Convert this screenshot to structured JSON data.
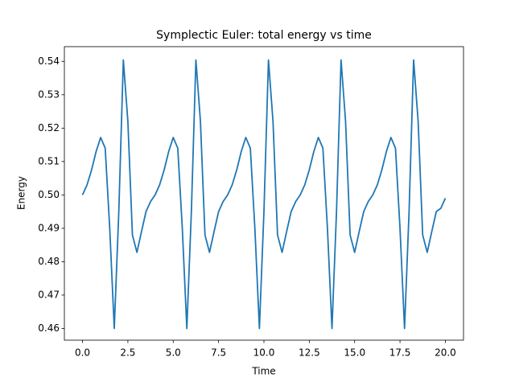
{
  "chart_data": {
    "type": "line",
    "title": "Symplectic Euler: total energy vs time",
    "x_label": "Time",
    "y_label": "Energy",
    "x": [
      0,
      0.25,
      0.5,
      0.75,
      1,
      1.25,
      1.5,
      1.75,
      2,
      2.25,
      2.5,
      2.75,
      3,
      3.25,
      3.5,
      3.75,
      4,
      4.25,
      4.5,
      4.75,
      5,
      5.25,
      5.5,
      5.75,
      6,
      6.25,
      6.5,
      6.75,
      7,
      7.25,
      7.5,
      7.75,
      8,
      8.25,
      8.5,
      8.75,
      9,
      9.25,
      9.5,
      9.75,
      10,
      10.25,
      10.5,
      10.75,
      11,
      11.25,
      11.5,
      11.75,
      12,
      12.25,
      12.5,
      12.75,
      13,
      13.25,
      13.5,
      13.75,
      14,
      14.25,
      14.5,
      14.75,
      15,
      15.25,
      15.5,
      15.75,
      16,
      16.25,
      16.5,
      16.75,
      17,
      17.25,
      17.5,
      17.75,
      18,
      18.25,
      18.5,
      18.75,
      19,
      19.25,
      19.5,
      19.75,
      20
    ],
    "values": [
      0.5,
      0.503,
      0.5075,
      0.513,
      0.5172,
      0.514,
      0.49,
      0.46,
      0.495,
      0.5404,
      0.522,
      0.488,
      0.4828,
      0.489,
      0.495,
      0.498,
      0.5,
      0.503,
      0.5075,
      0.513,
      0.5172,
      0.514,
      0.49,
      0.46,
      0.495,
      0.5404,
      0.522,
      0.488,
      0.4828,
      0.489,
      0.495,
      0.498,
      0.5,
      0.503,
      0.5075,
      0.513,
      0.5172,
      0.514,
      0.49,
      0.46,
      0.495,
      0.5404,
      0.522,
      0.488,
      0.4828,
      0.489,
      0.495,
      0.498,
      0.5,
      0.503,
      0.5075,
      0.513,
      0.5172,
      0.514,
      0.49,
      0.46,
      0.495,
      0.5404,
      0.522,
      0.488,
      0.4828,
      0.489,
      0.495,
      0.498,
      0.5,
      0.503,
      0.5075,
      0.513,
      0.5172,
      0.514,
      0.49,
      0.46,
      0.495,
      0.5404,
      0.522,
      0.488,
      0.4828,
      0.489,
      0.495,
      0.496,
      0.499
    ],
    "color": "#1f77b4",
    "xlim": [
      -1,
      21
    ],
    "ylim": [
      0.4565,
      0.5444
    ],
    "xticks": [
      {
        "value": 0,
        "label": "0.0"
      },
      {
        "value": 2.5,
        "label": "2.5"
      },
      {
        "value": 5,
        "label": "5.0"
      },
      {
        "value": 7.5,
        "label": "7.5"
      },
      {
        "value": 10,
        "label": "10.0"
      },
      {
        "value": 12.5,
        "label": "12.5"
      },
      {
        "value": 15,
        "label": "15.0"
      },
      {
        "value": 17.5,
        "label": "17.5"
      },
      {
        "value": 20,
        "label": "20.0"
      }
    ],
    "yticks": [
      0.46,
      0.47,
      0.48,
      0.49,
      {
        "value": 0.5,
        "label": "0.50"
      },
      0.51,
      0.52,
      0.53,
      0.54
    ],
    "grid": false
  }
}
